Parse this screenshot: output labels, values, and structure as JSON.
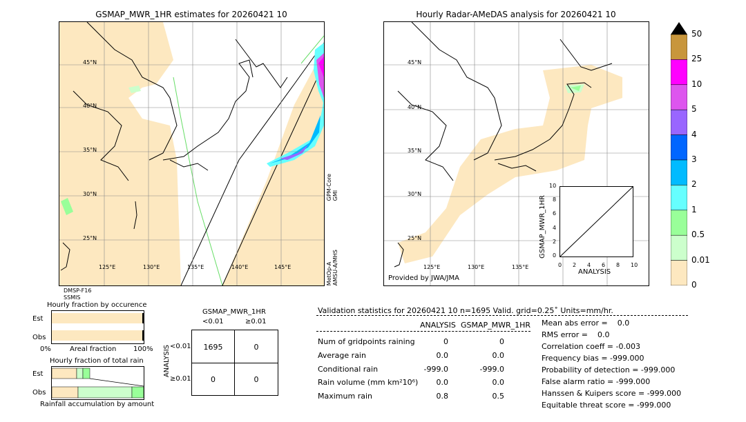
{
  "left_map": {
    "title": "GSMAP_MWR_1HR estimates for 20260421 10",
    "lat_labels": [
      "45°N",
      "40°N",
      "35°N",
      "30°N",
      "25°N"
    ],
    "lon_labels": [
      "125°E",
      "130°E",
      "135°E",
      "140°E",
      "145°E"
    ],
    "sat_right_top": "GPM-Core\nGMI",
    "sat_right_bottom": "MetOp-A\nAMSU-A/MHS",
    "sat_bottom_left_1": "DMSP-F16",
    "sat_bottom_left_2": "SSMIS"
  },
  "right_map": {
    "title": "Hourly Radar-AMeDAS analysis for 20260421 10",
    "lat_labels": [
      "45°N",
      "40°N",
      "35°N",
      "30°N",
      "25°N"
    ],
    "lon_labels": [
      "125°E",
      "130°E",
      "135°E"
    ],
    "provided": "Provided by JWA/JMA"
  },
  "colorbar": {
    "ticks": [
      "50",
      "25",
      "10",
      "5",
      "4",
      "3",
      "2",
      "1",
      "0.5",
      "0.01",
      "0"
    ],
    "colors": [
      "#c8963c",
      "#ff00ff",
      "#dd55ee",
      "#9966ff",
      "#0066ff",
      "#00bbff",
      "#66ffff",
      "#99ff99",
      "#ccffcc",
      "#fde8c0"
    ]
  },
  "scatter_inset": {
    "ylabel": "GSMAP_MWR_1HR",
    "xlabel": "ANALYSIS",
    "xticks": [
      "0",
      "2",
      "4",
      "6",
      "8",
      "10"
    ],
    "yticks": [
      "0",
      "2",
      "4",
      "6",
      "8",
      "10"
    ]
  },
  "fraction_occurrence": {
    "title": "Hourly fraction by occurence",
    "rows": [
      "Est",
      "Obs"
    ],
    "xlabel_left": "0%",
    "xlabel_mid": "Areal fraction",
    "xlabel_right": "100%"
  },
  "fraction_total": {
    "title": "Hourly fraction of total rain",
    "rows": [
      "Est",
      "Obs"
    ],
    "xlabel": "Rainfall accumulation by amount"
  },
  "contingency": {
    "title": "GSMAP_MWR_1HR",
    "col_labels": [
      "<0.01",
      "≥0.01"
    ],
    "row_axis": "ANALYSIS",
    "row_labels": [
      "<0.01",
      "≥0.01"
    ],
    "cells": [
      [
        "1695",
        "0"
      ],
      [
        "0",
        "0"
      ]
    ]
  },
  "validation": {
    "header": "Validation statistics for 20260421 10  n=1695 Valid. grid=0.25˚ Units=mm/hr.",
    "col_analysis": "ANALYSIS",
    "col_gsmap": "GSMAP_MWR_1HR",
    "rows": [
      {
        "label": "Num of gridpoints raining",
        "analysis": "0",
        "gsmap": "0"
      },
      {
        "label": "Average rain",
        "analysis": "0.0",
        "gsmap": "0.0"
      },
      {
        "label": "Conditional rain",
        "analysis": "-999.0",
        "gsmap": "-999.0"
      },
      {
        "label": "Rain volume (mm km²10⁶)",
        "analysis": "0.0",
        "gsmap": "0.0"
      },
      {
        "label": "Maximum rain",
        "analysis": "0.8",
        "gsmap": "0.5"
      }
    ],
    "scores": [
      "Mean abs error =    0.0",
      "RMS error =    0.0",
      "Correlation coeff = -0.003",
      "Frequency bias = -999.000",
      "Probability of detection = -999.000",
      "False alarm ratio = -999.000",
      "Hanssen & Kuipers score = -999.000",
      "Equitable threat score = -999.000"
    ]
  }
}
